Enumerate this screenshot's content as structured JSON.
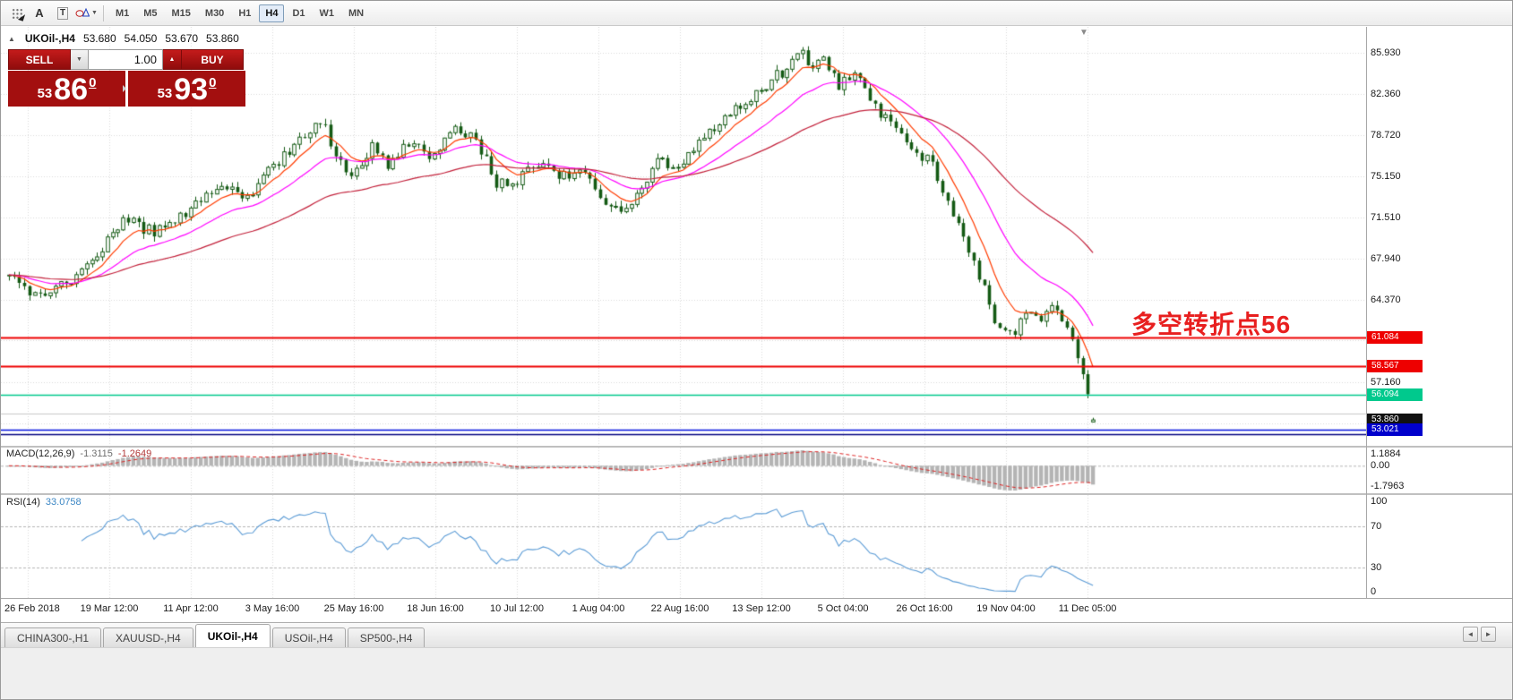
{
  "icons": {
    "caret_down": "▼",
    "caret_up": "▲",
    "collapse": "▲",
    "chart_shift": "▼",
    "tabs_scroll_left": "◄",
    "tabs_scroll_right": "►",
    "shapes_dropdown": "▼"
  },
  "toolbar": {
    "tools": [
      {
        "id": "select-objects",
        "glyph": "dots"
      },
      {
        "id": "insert-text",
        "label": "A"
      },
      {
        "id": "insert-text-label",
        "label": "T"
      },
      {
        "id": "insert-shapes",
        "glyph": "shapes",
        "dropdown": true
      }
    ],
    "timeframes": [
      "M1",
      "M5",
      "M15",
      "M30",
      "H1",
      "H4",
      "D1",
      "W1",
      "MN"
    ],
    "active_timeframe": "H4"
  },
  "chart": {
    "symbol": "UKOil-,H4",
    "ohlc": {
      "open": "53.680",
      "high": "54.050",
      "low": "53.670",
      "close": "53.860"
    },
    "annotation": {
      "text": "多空转折点56",
      "color": "#e81f1f"
    },
    "axis_ticks": [
      "85.930",
      "82.360",
      "78.720",
      "75.150",
      "71.510",
      "67.940",
      "64.370",
      "57.160"
    ],
    "price_tags": [
      {
        "text": "61.084",
        "bg": "#ee0000",
        "fg": "#ffffff"
      },
      {
        "text": "58.567",
        "bg": "#ee0000",
        "fg": "#ffffff"
      },
      {
        "text": "56.094",
        "bg": "#00c98d",
        "fg": "#ffffff"
      },
      {
        "text": "53.860",
        "bg": "#111111",
        "fg": "#ffffff"
      },
      {
        "text": "53.021",
        "bg": "#0000cc",
        "fg": "#ffffff"
      }
    ]
  },
  "trade_panel": {
    "sell_label": "SELL",
    "buy_label": "BUY",
    "volume": "1.00",
    "bid": {
      "prefix": "53",
      "big": "86",
      "sup": "0"
    },
    "ask": {
      "prefix": "53",
      "big": "93",
      "sup": "0"
    }
  },
  "macd_panel": {
    "name": "MACD(12,26,9)",
    "value_main": "-1.3115",
    "value_signal": "-1.2649",
    "axis": [
      "1.1884",
      "0.00",
      "-1.7963"
    ],
    "range": [
      1.1884,
      -1.7963
    ]
  },
  "rsi_panel": {
    "name": "RSI(14)",
    "value": "33.0758",
    "axis": [
      "100",
      "70",
      "30",
      "0"
    ],
    "levels": [
      70,
      30
    ]
  },
  "tabs": {
    "items": [
      "CHINA300-,H1",
      "XAUUSD-,H4",
      "UKOil-,H4",
      "USOil-,H4",
      "SP500-,H4"
    ],
    "active": "UKOil-,H4"
  },
  "chart_data": {
    "type": "candlestick",
    "symbol": "UKOil-",
    "timeframe": "H4",
    "bars": 210,
    "y_range": [
      51.6,
      88.2
    ],
    "y_ticks": [
      85.93,
      82.36,
      78.72,
      75.15,
      71.51,
      67.94,
      64.37,
      60.8,
      57.16,
      53.59
    ],
    "x_tick_labels": [
      "26 Feb 2018",
      "19 Mar 12:00",
      "11 Apr 12:00",
      "3 May 16:00",
      "25 May 16:00",
      "18 Jun 16:00",
      "10 Jul 12:00",
      "1 Aug 04:00",
      "22 Aug 16:00",
      "13 Sep 12:00",
      "5 Oct 04:00",
      "26 Oct 16:00",
      "19 Nov 04:00",
      "11 Dec 05:00"
    ],
    "price_path": [
      [
        0,
        66.5
      ],
      [
        0.02,
        64.8
      ],
      [
        0.05,
        65.6
      ],
      [
        0.08,
        68.2
      ],
      [
        0.105,
        71.4
      ],
      [
        0.135,
        70.2
      ],
      [
        0.165,
        72.2
      ],
      [
        0.19,
        74.3
      ],
      [
        0.22,
        73.4
      ],
      [
        0.25,
        76.6
      ],
      [
        0.275,
        79.2
      ],
      [
        0.29,
        79.8
      ],
      [
        0.305,
        76.2
      ],
      [
        0.32,
        75.4
      ],
      [
        0.335,
        77.6
      ],
      [
        0.35,
        76.2
      ],
      [
        0.37,
        78.4
      ],
      [
        0.39,
        76.6
      ],
      [
        0.41,
        79.2
      ],
      [
        0.43,
        78.6
      ],
      [
        0.45,
        74.4
      ],
      [
        0.47,
        74.8
      ],
      [
        0.49,
        76.6
      ],
      [
        0.51,
        75.0
      ],
      [
        0.53,
        75.8
      ],
      [
        0.55,
        72.7
      ],
      [
        0.565,
        71.9
      ],
      [
        0.585,
        74.5
      ],
      [
        0.6,
        77.0
      ],
      [
        0.615,
        75.7
      ],
      [
        0.635,
        78.2
      ],
      [
        0.655,
        79.9
      ],
      [
        0.675,
        81.3
      ],
      [
        0.695,
        82.9
      ],
      [
        0.715,
        84.4
      ],
      [
        0.73,
        86.6
      ],
      [
        0.74,
        84.7
      ],
      [
        0.75,
        85.9
      ],
      [
        0.765,
        83.1
      ],
      [
        0.78,
        84.1
      ],
      [
        0.8,
        81.2
      ],
      [
        0.82,
        78.8
      ],
      [
        0.84,
        77.0
      ],
      [
        0.852,
        76.4
      ],
      [
        0.865,
        72.8
      ],
      [
        0.88,
        69.8
      ],
      [
        0.895,
        66.2
      ],
      [
        0.91,
        62.6
      ],
      [
        0.925,
        61.3
      ],
      [
        0.94,
        63.6
      ],
      [
        0.952,
        62.4
      ],
      [
        0.963,
        63.9
      ],
      [
        0.975,
        62.3
      ],
      [
        0.985,
        59.9
      ],
      [
        0.993,
        56.6
      ],
      [
        1,
        53.86
      ]
    ],
    "last_bar": {
      "open": 53.68,
      "high": 54.05,
      "low": 53.67,
      "close": 53.86
    },
    "candle_color": "#145a14",
    "moving_averages": [
      {
        "period": 8,
        "color": "#ff3c00"
      },
      {
        "period": 21,
        "color": "#ff00ff"
      },
      {
        "period": 55,
        "color": "#c2203a"
      }
    ],
    "levels": [
      {
        "price": 61.084,
        "color": "#ee0000",
        "width": 2
      },
      {
        "price": 58.567,
        "color": "#ee0000",
        "width": 2
      },
      {
        "price": 56.094,
        "color": "#00c98d",
        "width": 1.6
      },
      {
        "price": 54.42,
        "color": "#c9c9c9",
        "width": 1
      },
      {
        "price": 53.021,
        "color": "#0011dd",
        "width": 1.6
      },
      {
        "price": 52.6,
        "color": "#000080",
        "width": 1.6
      }
    ],
    "macd": {
      "fast": 12,
      "slow": 26,
      "signal": 9,
      "hist_color": "#b4b4b4",
      "signal_color": "#dd2222"
    },
    "rsi": {
      "period": 14,
      "color": "#5b9bd5"
    }
  }
}
